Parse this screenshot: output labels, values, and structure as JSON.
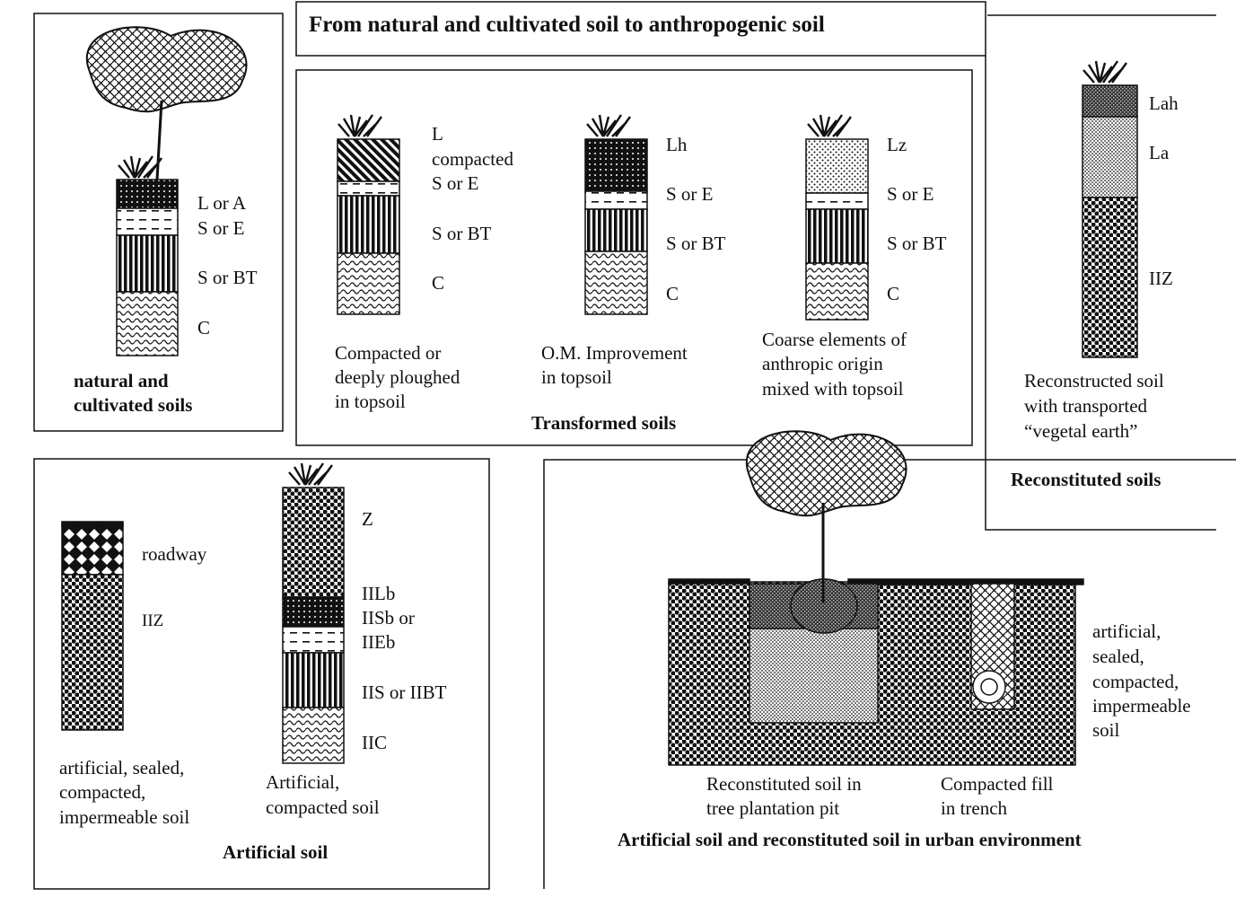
{
  "title": "From natural and cultivated  soil to anthropogenic soil",
  "natural": {
    "layers": [
      "L or A",
      "S or E",
      "S or BT",
      "C"
    ],
    "caption": [
      "natural and",
      "cultivated soils"
    ]
  },
  "transformed": {
    "group_label": "Transformed soils",
    "profiles": [
      {
        "layers": [
          "L",
          "compacted",
          "S or E",
          "S or BT",
          "C"
        ],
        "caption": [
          "Compacted or",
          "deeply ploughed",
          "in topsoil"
        ]
      },
      {
        "layers": [
          "Lh",
          "S or E",
          "S or BT",
          "C"
        ],
        "caption": [
          "O.M. Improvement",
          "in topsoil"
        ]
      },
      {
        "layers": [
          "Lz",
          "S or E",
          "S or BT",
          "C"
        ],
        "caption": [
          "Coarse elements of",
          "anthropic origin",
          "mixed with topsoil"
        ]
      }
    ]
  },
  "reconstituted": {
    "layers": [
      "Lah",
      "La",
      "IIZ"
    ],
    "caption": [
      "Reconstructed soil",
      "with transported",
      "“vegetal earth”"
    ],
    "group_label": "Reconstituted soils"
  },
  "artificial": {
    "group_label": "Artificial soil",
    "profiles": [
      {
        "layers": [
          "roadway",
          "IIZ"
        ],
        "caption": [
          "artificial, sealed,",
          "compacted,",
          "impermeable soil"
        ]
      },
      {
        "layers": [
          "Z",
          "IILb",
          "IISb or",
          "IIEb",
          "IIS or IIBT",
          "IIC"
        ],
        "caption": [
          "Artificial,",
          "compacted soil"
        ]
      }
    ]
  },
  "urban": {
    "group_label": "Artificial soil and reconstituted soil in urban environment",
    "side_label": [
      "artificial,",
      "sealed,",
      "compacted,",
      "impermeable",
      "soil"
    ],
    "pit_caption": [
      "Reconstituted soil in",
      "tree plantation pit"
    ],
    "trench_caption": [
      "Compacted fill",
      "in trench"
    ]
  },
  "colors": {
    "ink": "#111111",
    "paper": "#ffffff"
  }
}
